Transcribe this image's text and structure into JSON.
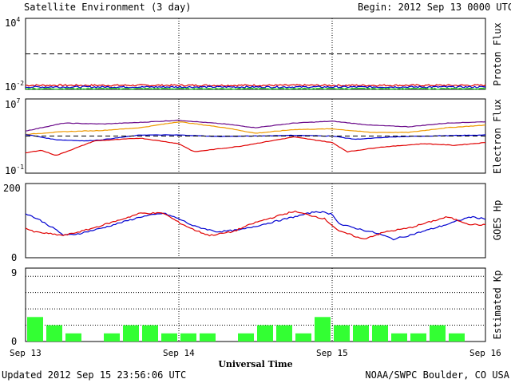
{
  "header": {
    "title": "Satellite Environment (3 day)",
    "begin": "Begin:  2012 Sep 13 0000 UTC"
  },
  "footer": {
    "updated": "Updated 2012 Sep 15 23:56:06 UTC",
    "credit": "NOAA/SWPC Boulder, CO USA"
  },
  "xaxis": {
    "label": "Universal Time",
    "ticks": [
      "Sep 13",
      "Sep 14",
      "Sep 15",
      "Sep 16"
    ]
  },
  "colors": {
    "red": "#e00000",
    "blue": "#0000d0",
    "green": "#22dd22",
    "purple": "#6a0a8a",
    "orange": "#ee9900",
    "kp_bar": "#33ff33"
  },
  "chart_data": [
    {
      "type": "line",
      "ylabel": "Proton Flux",
      "yscale": "log",
      "ylim": [
        0.01,
        10000
      ],
      "yticks": [
        {
          "base": "10",
          "exp": "4"
        },
        {
          "base": "10",
          "exp": "-2"
        }
      ],
      "threshold": 10,
      "x_range_days": [
        0,
        3
      ],
      "series": [
        {
          "color": "red",
          "x": [
            0,
            3
          ],
          "y": [
            0.022,
            0.022
          ],
          "noise": 0.07
        },
        {
          "color": "blue",
          "x": [
            0,
            3
          ],
          "y": [
            0.016,
            0.016
          ],
          "noise": 0.07
        },
        {
          "color": "green",
          "x": [
            0,
            3
          ],
          "y": [
            0.0115,
            0.0115
          ],
          "noise": 0.05
        }
      ]
    },
    {
      "type": "line",
      "ylabel": "Electron Flux",
      "yscale": "log",
      "ylim": [
        0.1,
        10000000
      ],
      "yticks": [
        {
          "base": "10",
          "exp": "7"
        },
        {
          "base": "10",
          "exp": "-1"
        }
      ],
      "threshold": 1000,
      "x_range_days": [
        0,
        3
      ],
      "series": [
        {
          "color": "purple",
          "x": [
            0,
            0.25,
            0.5,
            0.75,
            1.0,
            1.3,
            1.5,
            1.75,
            2.0,
            2.25,
            2.5,
            2.75,
            3.0
          ],
          "y": [
            3500,
            25000,
            20000,
            30000,
            50000,
            20000,
            8000,
            25000,
            40000,
            15000,
            10000,
            25000,
            35000
          ]
        },
        {
          "color": "orange",
          "x": [
            0,
            0.25,
            0.5,
            0.75,
            1.0,
            1.3,
            1.5,
            1.75,
            2.0,
            2.25,
            2.5,
            2.75,
            3.0
          ],
          "y": [
            1500,
            3000,
            4000,
            8000,
            35000,
            8000,
            2000,
            5000,
            6000,
            2500,
            2500,
            8000,
            15000
          ]
        },
        {
          "color": "blue",
          "x": [
            0,
            0.2,
            0.4,
            0.5,
            0.75,
            1.0,
            1.25,
            1.5,
            1.75,
            2.0,
            2.15,
            2.4,
            2.6,
            3.0
          ],
          "y": [
            1500,
            400,
            300,
            400,
            1300,
            1300,
            900,
            1000,
            1200,
            1000,
            450,
            800,
            1000,
            1300
          ]
        },
        {
          "color": "red",
          "x": [
            0,
            0.1,
            0.2,
            0.45,
            0.75,
            1.0,
            1.1,
            1.4,
            1.6,
            1.75,
            2.0,
            2.1,
            2.3,
            2.6,
            2.8,
            3.0
          ],
          "y": [
            15,
            30,
            8,
            300,
            600,
            150,
            20,
            80,
            300,
            800,
            200,
            20,
            60,
            150,
            100,
            200
          ]
        }
      ]
    },
    {
      "type": "line",
      "ylabel": "GOES Hp",
      "yscale": "linear",
      "ylim": [
        0,
        200
      ],
      "yticks": [
        "200",
        "0"
      ],
      "x_range_days": [
        0,
        3
      ],
      "series": [
        {
          "color": "blue",
          "x": [
            0,
            0.1,
            0.2,
            0.25,
            0.35,
            0.5,
            0.75,
            0.9,
            1.0,
            1.1,
            1.25,
            1.4,
            1.6,
            1.75,
            1.9,
            2.0,
            2.05,
            2.15,
            2.3,
            2.4,
            2.5,
            2.75,
            2.9,
            3.0
          ],
          "y": [
            120,
            100,
            75,
            60,
            65,
            80,
            110,
            120,
            105,
            85,
            70,
            75,
            95,
            110,
            125,
            118,
            90,
            80,
            65,
            50,
            60,
            90,
            110,
            105
          ]
        },
        {
          "color": "red",
          "x": [
            0,
            0.05,
            0.15,
            0.25,
            0.4,
            0.6,
            0.75,
            0.9,
            1.0,
            1.1,
            1.2,
            1.35,
            1.5,
            1.75,
            1.95,
            2.05,
            2.1,
            2.2,
            2.35,
            2.5,
            2.75,
            2.9,
            3.0
          ],
          "y": [
            80,
            70,
            65,
            60,
            75,
            100,
            120,
            120,
            95,
            75,
            60,
            70,
            95,
            125,
            105,
            70,
            65,
            50,
            70,
            80,
            110,
            90,
            88
          ]
        }
      ]
    },
    {
      "type": "bar",
      "ylabel": "Estimated Kp",
      "ylim": [
        0,
        9
      ],
      "yticks": [
        "9",
        "0"
      ],
      "gridlines": [
        2,
        4,
        6,
        8
      ],
      "bar_hours": 3,
      "values": [
        3,
        2,
        1,
        0,
        1,
        2,
        2,
        1,
        1,
        1,
        0,
        1,
        2,
        2,
        1,
        3,
        2,
        2,
        2,
        1,
        1,
        2,
        1,
        0
      ]
    }
  ]
}
